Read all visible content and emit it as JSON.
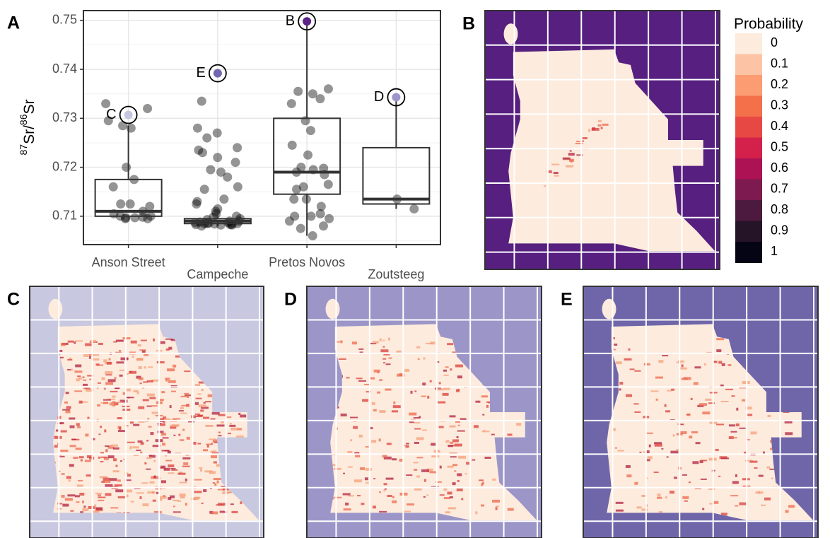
{
  "chart_data": {
    "type": "box",
    "panel_label": "A",
    "y_label": {
      "sup1": "87",
      "base1": "Sr/",
      "sup2": "86",
      "base2": "Sr"
    },
    "categories": [
      "Anson Street",
      "Campeche",
      "Pretos Novos",
      "Zoutsteeg"
    ],
    "ylim": [
      0.7042,
      0.752
    ],
    "yticks": [
      0.71,
      0.72,
      0.73,
      0.74,
      0.75
    ],
    "yminor": [
      0.705,
      0.715,
      0.725,
      0.735,
      0.745
    ],
    "grid": true,
    "boxes": [
      {
        "q1": 0.71,
        "median": 0.711,
        "q3": 0.7175,
        "whisker_low": 0.7095,
        "whisker_high": 0.7285
      },
      {
        "q1": 0.7085,
        "median": 0.709,
        "q3": 0.7095,
        "whisker_low": 0.708,
        "whisker_high": 0.711
      },
      {
        "q1": 0.7145,
        "median": 0.719,
        "q3": 0.73,
        "whisker_low": 0.706,
        "whisker_high": 0.75
      },
      {
        "q1": 0.7125,
        "median": 0.7135,
        "q3": 0.724,
        "whisker_low": 0.7115,
        "whisker_high": 0.7343
      }
    ],
    "points": [
      [
        0.733,
        0.732,
        0.7295,
        0.728,
        0.7285,
        0.72,
        0.7175,
        0.716,
        0.7125,
        0.7125,
        0.712,
        0.711,
        0.7105,
        0.71,
        0.7098,
        0.7097,
        0.7095,
        0.7095,
        0.7097,
        0.71
      ],
      [
        0.7335,
        0.728,
        0.727,
        0.726,
        0.724,
        0.7235,
        0.723,
        0.722,
        0.721,
        0.7195,
        0.719,
        0.718,
        0.716,
        0.7155,
        0.7135,
        0.713,
        0.7125,
        0.7115,
        0.711,
        0.7105,
        0.71,
        0.7098,
        0.7095,
        0.7093,
        0.709,
        0.709,
        0.7088,
        0.7087,
        0.7087,
        0.7086,
        0.7085,
        0.7085,
        0.7085,
        0.7084,
        0.7084,
        0.7083,
        0.7083,
        0.7082,
        0.7082,
        0.708
      ],
      [
        0.736,
        0.735,
        0.7355,
        0.734,
        0.733,
        0.7295,
        0.7275,
        0.7245,
        0.7225,
        0.72,
        0.7198,
        0.7195,
        0.719,
        0.7185,
        0.7165,
        0.716,
        0.7155,
        0.7135,
        0.712,
        0.7105,
        0.71,
        0.71,
        0.7095,
        0.709,
        0.708,
        0.7075,
        0.706,
        0.7135
      ],
      [
        0.7135,
        0.7115
      ]
    ],
    "highlights": [
      {
        "label": "C",
        "category": 0,
        "value": 0.7307,
        "color": "#c6c6e0"
      },
      {
        "label": "E",
        "category": 1,
        "value": 0.7392,
        "color": "#7168b0"
      },
      {
        "label": "B",
        "category": 2,
        "value": 0.7498,
        "color": "#5b2388"
      },
      {
        "label": "D",
        "category": 3,
        "value": 0.7343,
        "color": "#9b95c8"
      }
    ]
  },
  "maps": [
    {
      "label": "B",
      "background": "#561f80"
    },
    {
      "label": "C",
      "background": "#c8c8e0"
    },
    {
      "label": "D",
      "background": "#9c96c8"
    },
    {
      "label": "E",
      "background": "#6f66aa"
    }
  ],
  "probability_legend": {
    "title": "Probability",
    "ticks": [
      0,
      0.1,
      0.2,
      0.3,
      0.4,
      0.5,
      0.6,
      0.7,
      0.8,
      0.9,
      1
    ],
    "colors": [
      "#fdebdd",
      "#fcc4a4",
      "#fb9c73",
      "#f4704a",
      "#e84844",
      "#d3214c",
      "#ad1354",
      "#7d1a50",
      "#4c1a3e",
      "#251328",
      "#050414"
    ]
  }
}
